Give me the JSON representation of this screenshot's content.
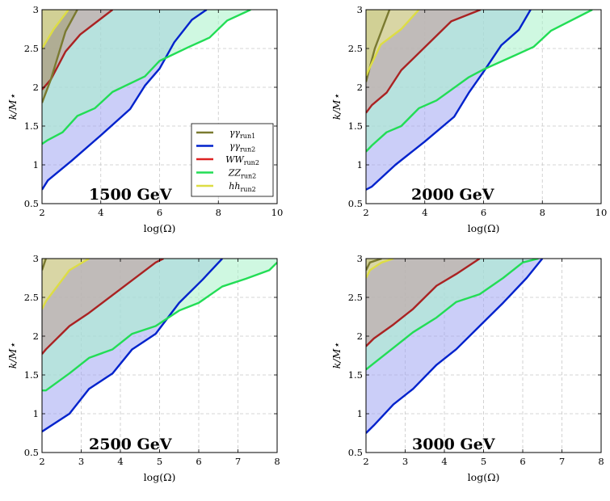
{
  "chart_data": [
    {
      "type": "area",
      "annotation": "1500 GeV",
      "xlabel": "log(Ω)",
      "ylabel": "k/M⋆",
      "xlim": [
        2,
        10
      ],
      "ylim": [
        0.5,
        3
      ],
      "xticks": [
        2,
        4,
        6,
        8,
        10
      ],
      "yticks": [
        0.5,
        1,
        1.5,
        2,
        2.5,
        3
      ],
      "grid": true,
      "legend": "inside bottom-right",
      "series": [
        {
          "name": "γγ_run2",
          "color": "#0022cc",
          "fill": "#a0a6f2",
          "x": [
            2,
            2.2,
            3,
            4,
            5,
            5.5,
            6,
            6.5,
            7.1,
            7.6
          ],
          "y": [
            0.68,
            0.8,
            1.05,
            1.38,
            1.72,
            2.02,
            2.24,
            2.58,
            2.87,
            3.0
          ]
        },
        {
          "name": "ZZ_run2",
          "color": "#22dd55",
          "fill": "#a8f2c8",
          "x": [
            2,
            2.2,
            2.7,
            3.2,
            3.8,
            4.4,
            5.5,
            6,
            7,
            7.7,
            8.3,
            9.1
          ],
          "y": [
            1.27,
            1.32,
            1.42,
            1.63,
            1.73,
            1.94,
            2.14,
            2.34,
            2.52,
            2.64,
            2.86,
            3.0
          ]
        },
        {
          "name": "WW_run2",
          "color": "#aa2222",
          "fill": "#c89a9a",
          "x": [
            2,
            2.3,
            2.8,
            3.3,
            4.4
          ],
          "y": [
            1.97,
            2.1,
            2.46,
            2.68,
            3.0
          ]
        },
        {
          "name": "γγ_run1",
          "color": "#7a7a30",
          "fill": "#a3a277",
          "x": [
            2,
            2.3,
            2.8,
            3.2
          ],
          "y": [
            1.8,
            2.1,
            2.72,
            3.0
          ]
        },
        {
          "name": "hh_run2",
          "color": "#dddd44",
          "fill": "#ecec95",
          "x": [
            2,
            2.4,
            2.9
          ],
          "y": [
            2.5,
            2.75,
            3.0
          ]
        }
      ]
    },
    {
      "type": "area",
      "annotation": "2000 GeV",
      "xlabel": "log(Ω)",
      "ylabel": "k/M⋆",
      "xlim": [
        2,
        10
      ],
      "ylim": [
        0.5,
        3
      ],
      "xticks": [
        2,
        4,
        6,
        8,
        10
      ],
      "yticks": [
        0.5,
        1,
        1.5,
        2,
        2.5,
        3
      ],
      "grid": true,
      "series": [
        {
          "name": "γγ_run2",
          "color": "#0022cc",
          "fill": "#a0a6f2",
          "x": [
            2,
            2.2,
            3,
            4,
            5,
            5.5,
            6,
            6.6,
            7.2,
            7.6
          ],
          "y": [
            0.68,
            0.72,
            1.0,
            1.3,
            1.62,
            1.93,
            2.2,
            2.54,
            2.74,
            3.0
          ]
        },
        {
          "name": "ZZ_run2",
          "color": "#22dd55",
          "fill": "#a8f2c8",
          "x": [
            2,
            2.2,
            2.7,
            3.2,
            3.8,
            4.4,
            5.5,
            6,
            7,
            7.7,
            8.3,
            9.7
          ],
          "y": [
            1.17,
            1.25,
            1.42,
            1.5,
            1.73,
            1.83,
            2.13,
            2.23,
            2.4,
            2.52,
            2.73,
            3.0
          ]
        },
        {
          "name": "WW_run2",
          "color": "#aa2222",
          "fill": "#c89a9a",
          "x": [
            2,
            2.2,
            2.7,
            3.2,
            4.9,
            5.9
          ],
          "y": [
            1.67,
            1.77,
            1.93,
            2.22,
            2.85,
            3.0
          ]
        },
        {
          "name": "γγ_run1",
          "color": "#7a7a30",
          "fill": "#a3a277",
          "x": [
            2,
            2.3,
            2.8
          ],
          "y": [
            2.07,
            2.5,
            3.0
          ]
        },
        {
          "name": "hh_run2",
          "color": "#dddd44",
          "fill": "#ecec95",
          "x": [
            2,
            2.5,
            3.2,
            3.8
          ],
          "y": [
            2.15,
            2.55,
            2.75,
            3.0
          ]
        }
      ]
    },
    {
      "type": "area",
      "annotation": "2500 GeV",
      "xlabel": "log(Ω)",
      "ylabel": "k/M⋆",
      "xlim": [
        2,
        8
      ],
      "ylim": [
        0.5,
        3
      ],
      "xticks": [
        2,
        3,
        4,
        5,
        6,
        7,
        8
      ],
      "yticks": [
        0.5,
        1,
        1.5,
        2,
        2.5,
        3
      ],
      "grid": true,
      "series": [
        {
          "name": "γγ_run2",
          "color": "#0022cc",
          "fill": "#a0a6f2",
          "x": [
            2,
            2.7,
            3.2,
            3.8,
            4.3,
            4.9,
            5.5,
            6.1,
            6.6
          ],
          "y": [
            0.77,
            1.0,
            1.32,
            1.52,
            1.83,
            2.03,
            2.43,
            2.73,
            3.0
          ]
        },
        {
          "name": "ZZ_run2",
          "color": "#22dd55",
          "fill": "#a8f2c8",
          "x": [
            2,
            2.1,
            2.7,
            3.2,
            3.8,
            4.3,
            4.9,
            5.5,
            6,
            6.6,
            7.2,
            7.8,
            8
          ],
          "y": [
            1.3,
            1.3,
            1.52,
            1.72,
            1.83,
            2.03,
            2.13,
            2.33,
            2.43,
            2.64,
            2.74,
            2.85,
            2.95
          ]
        },
        {
          "name": "WW_run2",
          "color": "#aa2222",
          "fill": "#c89a9a",
          "x": [
            2,
            2.1,
            2.7,
            3.2,
            4.9,
            5.1
          ],
          "y": [
            1.77,
            1.83,
            2.13,
            2.3,
            2.95,
            3.0
          ]
        },
        {
          "name": "γγ_run1",
          "color": "#7a7a30",
          "fill": "#a3a277",
          "x": [
            2,
            2.1
          ],
          "y": [
            2.85,
            3.0
          ]
        },
        {
          "name": "hh_run2",
          "color": "#dddd44",
          "fill": "#ecec95",
          "x": [
            2,
            2.1,
            2.7,
            3.2
          ],
          "y": [
            2.35,
            2.45,
            2.85,
            3.0
          ]
        }
      ]
    },
    {
      "type": "area",
      "annotation": "3000 GeV",
      "xlabel": "log(Ω)",
      "ylabel": "k/M⋆",
      "xlim": [
        2,
        8
      ],
      "ylim": [
        0.5,
        3
      ],
      "xticks": [
        2,
        3,
        4,
        5,
        6,
        7,
        8
      ],
      "yticks": [
        0.5,
        1,
        1.5,
        2,
        2.5,
        3
      ],
      "grid": true,
      "series": [
        {
          "name": "γγ_run2",
          "color": "#0022cc",
          "fill": "#a0a6f2",
          "x": [
            2,
            2.2,
            2.7,
            3.2,
            3.8,
            4.3,
            4.9,
            5.5,
            6.1,
            6.5
          ],
          "y": [
            0.75,
            0.85,
            1.12,
            1.32,
            1.63,
            1.83,
            2.13,
            2.43,
            2.75,
            3.0
          ]
        },
        {
          "name": "ZZ_run2",
          "color": "#22dd55",
          "fill": "#a8f2c8",
          "x": [
            2,
            2.2,
            2.7,
            3.2,
            3.8,
            4.3,
            4.9,
            5.5,
            6,
            6.4
          ],
          "y": [
            1.57,
            1.65,
            1.85,
            2.05,
            2.24,
            2.44,
            2.54,
            2.75,
            2.95,
            3.0
          ]
        },
        {
          "name": "WW_run2",
          "color": "#aa2222",
          "fill": "#c89a9a",
          "x": [
            2,
            2.2,
            2.7,
            3.2,
            3.8,
            4.3,
            4.9
          ],
          "y": [
            1.87,
            1.97,
            2.15,
            2.35,
            2.65,
            2.8,
            3.0
          ]
        },
        {
          "name": "γγ_run1",
          "color": "#7a7a30",
          "fill": "#a3a277",
          "x": [
            2,
            2.1,
            2.4
          ],
          "y": [
            2.85,
            2.95,
            3.0
          ]
        },
        {
          "name": "hh_run2",
          "color": "#dddd44",
          "fill": "#ecec95",
          "x": [
            2,
            2.1,
            2.4,
            2.7
          ],
          "y": [
            2.75,
            2.85,
            2.95,
            3.0
          ]
        }
      ]
    }
  ],
  "legend": {
    "entries": [
      {
        "label": "γγ",
        "sub": "run1",
        "color": "#7a7a30"
      },
      {
        "label": "γγ",
        "sub": "run2",
        "color": "#0022cc"
      },
      {
        "label": "WW",
        "sub": "run2",
        "color": "#dd2222"
      },
      {
        "label": "ZZ",
        "sub": "run2",
        "color": "#22dd55"
      },
      {
        "label": "hh",
        "sub": "run2",
        "color": "#dddd44"
      }
    ]
  }
}
